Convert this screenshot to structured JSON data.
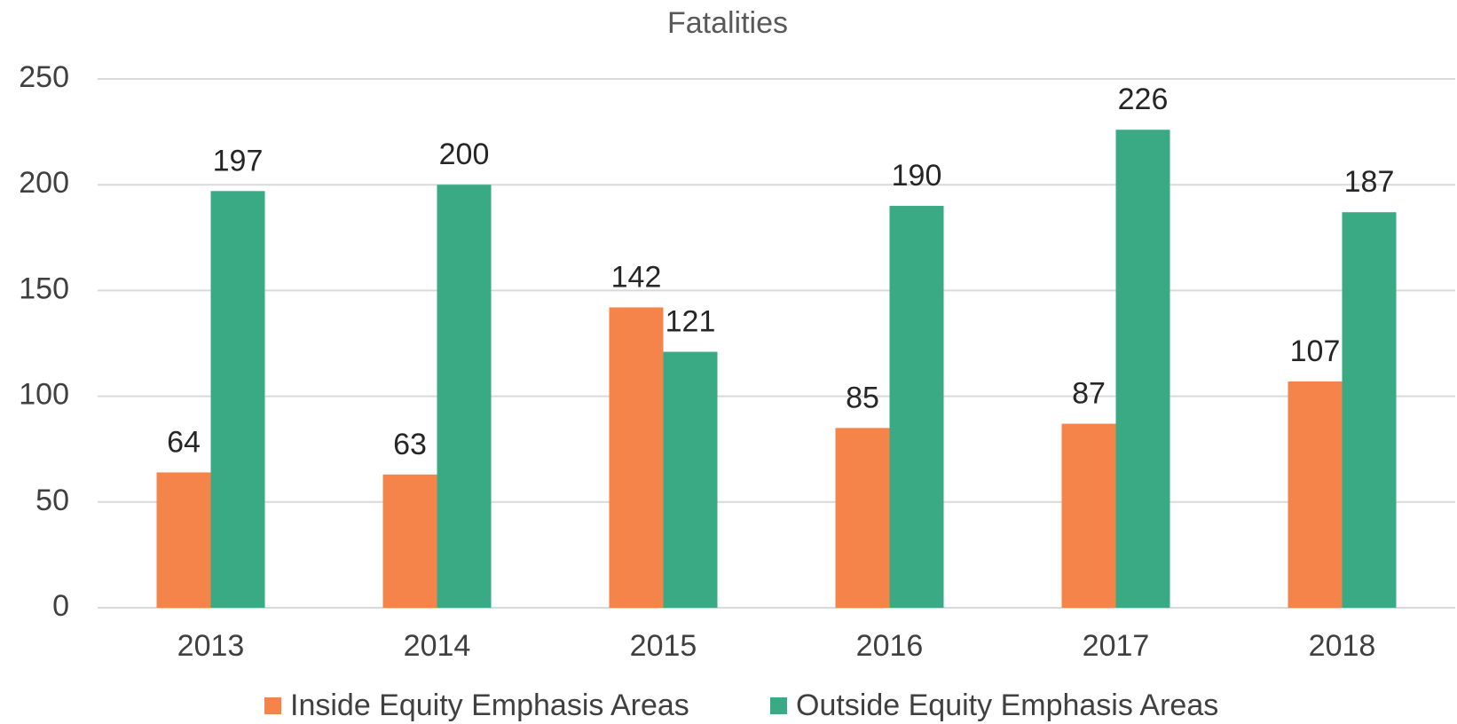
{
  "chart_data": {
    "type": "bar",
    "title": "Fatalities",
    "categories": [
      "2013",
      "2014",
      "2015",
      "2016",
      "2017",
      "2018"
    ],
    "series": [
      {
        "name": "Inside Equity Emphasis Areas",
        "color": "#f4844a",
        "values": [
          64,
          63,
          142,
          85,
          87,
          107
        ]
      },
      {
        "name": "Outside Equity Emphasis Areas",
        "color": "#3aaa84",
        "values": [
          197,
          200,
          121,
          190,
          226,
          187
        ]
      }
    ],
    "ylim": [
      0,
      250
    ],
    "yticks": [
      0,
      50,
      100,
      150,
      200,
      250
    ],
    "grid": true,
    "legend": "bottom"
  }
}
